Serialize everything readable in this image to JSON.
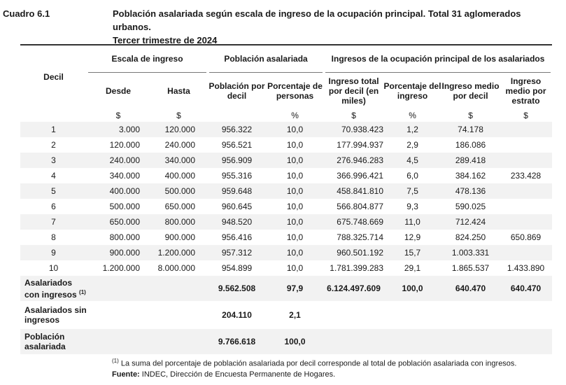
{
  "caption": {
    "label": "Cuadro 6.1",
    "title_line1": "Población asalariada según escala de ingreso de la ocupación principal. Total 31 aglomerados urbanos.",
    "title_line2": "Tercer trimestre de 2024"
  },
  "headers": {
    "decil": "Decil",
    "group_escala": "Escala de ingreso",
    "group_poblacion": "Población asalariada",
    "group_ingresos": "Ingresos de la ocupación principal de los asalariados",
    "desde": "Desde",
    "hasta": "Hasta",
    "poblacion_decil": "Población por decil",
    "porcentaje_personas": "Porcentaje de personas",
    "ingreso_total": "Ingreso total por decil (en miles)",
    "porcentaje_ingreso": "Porcentaje del ingreso",
    "ingreso_medio_decil": "Ingreso medio por decil",
    "ingreso_medio_estrato": "Ingreso medio por estrato"
  },
  "units": [
    "$",
    "$",
    "",
    "%",
    "$",
    "%",
    "$",
    "$"
  ],
  "rows": [
    [
      "1",
      "3.000",
      "120.000",
      "956.322",
      "10,0",
      "70.938.423",
      "1,2",
      "74.178",
      ""
    ],
    [
      "2",
      "120.000",
      "240.000",
      "956.521",
      "10,0",
      "177.994.937",
      "2,9",
      "186.086",
      ""
    ],
    [
      "3",
      "240.000",
      "340.000",
      "956.909",
      "10,0",
      "276.946.283",
      "4,5",
      "289.418",
      ""
    ],
    [
      "4",
      "340.000",
      "400.000",
      "955.316",
      "10,0",
      "366.996.421",
      "6,0",
      "384.162",
      "233.428"
    ],
    [
      "5",
      "400.000",
      "500.000",
      "959.648",
      "10,0",
      "458.841.810",
      "7,5",
      "478.136",
      ""
    ],
    [
      "6",
      "500.000",
      "650.000",
      "960.645",
      "10,0",
      "566.804.877",
      "9,3",
      "590.025",
      ""
    ],
    [
      "7",
      "650.000",
      "800.000",
      "948.520",
      "10,0",
      "675.748.669",
      "11,0",
      "712.424",
      ""
    ],
    [
      "8",
      "800.000",
      "900.000",
      "956.416",
      "10,0",
      "788.325.714",
      "12,9",
      "824.250",
      "650.869"
    ],
    [
      "9",
      "900.000",
      "1.200.000",
      "957.312",
      "10,0",
      "960.501.192",
      "15,7",
      "1.003.331",
      ""
    ],
    [
      "10",
      "1.200.000",
      "8.000.000",
      "954.899",
      "10,0",
      "1.781.399.283",
      "29,1",
      "1.865.537",
      "1.433.890"
    ]
  ],
  "summary": {
    "con_ingresos": {
      "label": "Asalariados con ingresos",
      "note_mark": "(1)",
      "poblacion": "9.562.508",
      "porcentaje": "97,9",
      "ingreso_total": "6.124.497.609",
      "porcentaje_ingreso": "100,0",
      "medio_decil": "640.470",
      "medio_estrato": "640.470"
    },
    "sin_ingresos": {
      "label": "Asalariados sin ingresos",
      "poblacion": "204.110",
      "porcentaje": "2,1"
    },
    "total": {
      "label": "Población asalariada",
      "poblacion": "9.766.618",
      "porcentaje": "100,0"
    }
  },
  "footnote": {
    "mark": "(1)",
    "text": " La suma del porcentaje de población asalariada por decil corresponde al total de población asalariada con ingresos.",
    "source_label": "Fuente:",
    "source_text": " INDEC, Dirección de Encuesta Permanente de Hogares."
  }
}
